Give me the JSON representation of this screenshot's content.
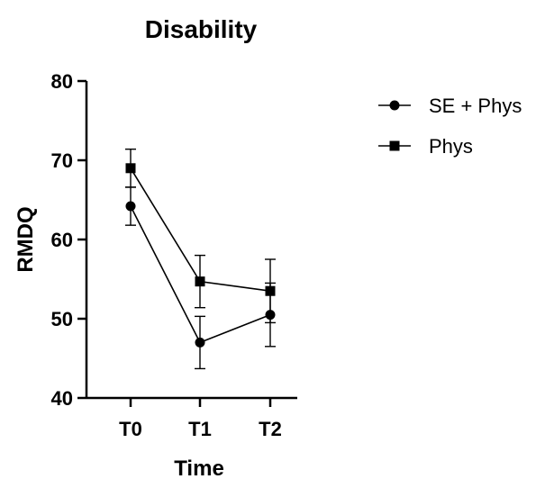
{
  "chart_data": {
    "type": "line",
    "title": "Disability",
    "xlabel": "Time",
    "ylabel": "RMDQ",
    "categories": [
      "T0",
      "T1",
      "T2"
    ],
    "ylim": [
      40,
      80
    ],
    "yticks": [
      40,
      50,
      60,
      70,
      80
    ],
    "grid": false,
    "legend_position": "top-right",
    "series": [
      {
        "name": "SE + Phys",
        "marker": "circle",
        "values": [
          64.2,
          47.0,
          50.5
        ],
        "error": [
          2.4,
          3.3,
          4.0
        ]
      },
      {
        "name": "Phys",
        "marker": "square",
        "values": [
          69.0,
          54.7,
          53.5
        ],
        "error": [
          2.4,
          3.3,
          4.0
        ]
      }
    ]
  }
}
